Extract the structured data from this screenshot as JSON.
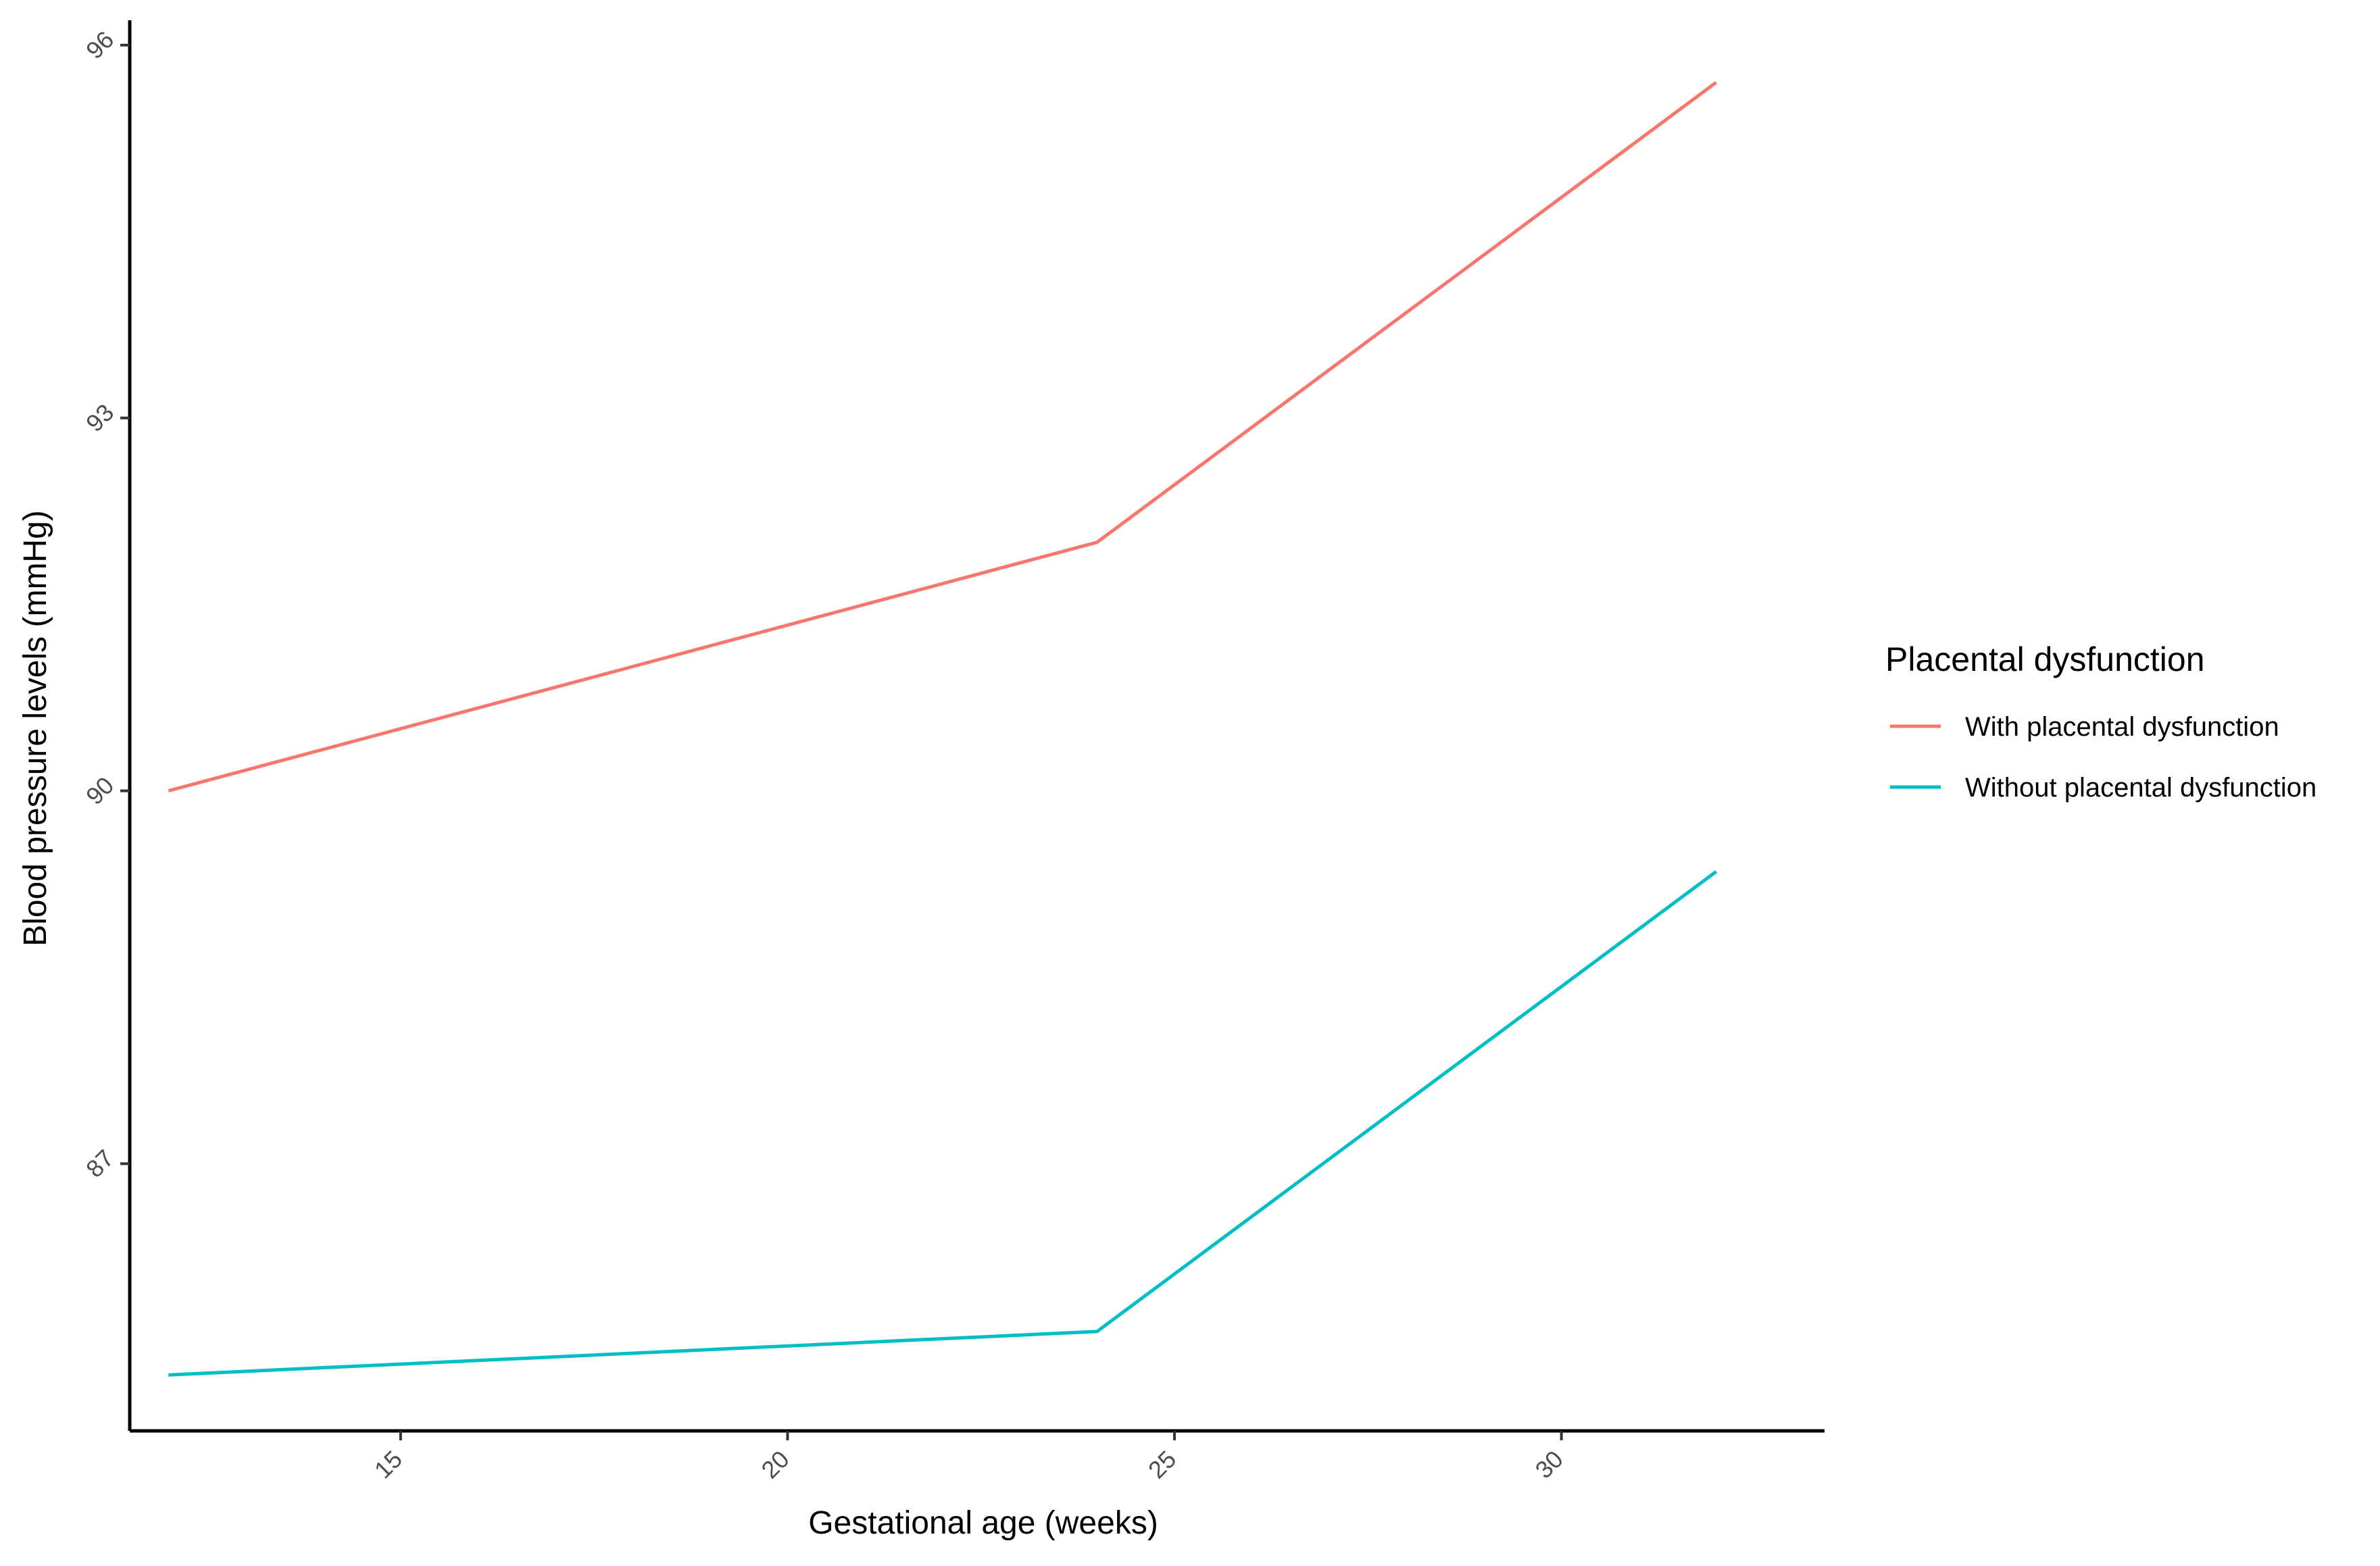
{
  "chart_data": {
    "type": "line",
    "xlabel": "Gestational age (weeks)",
    "ylabel": "Blood pressure levels (mmHg)",
    "x_ticks": [
      15,
      20,
      25,
      30
    ],
    "y_ticks": [
      87,
      90,
      93,
      96
    ],
    "xlim": [
      11.5,
      33.4
    ],
    "ylim": [
      84.85,
      96.2
    ],
    "grid": false,
    "legend": {
      "title": "Placental dysfunction",
      "placement": "right"
    },
    "series": [
      {
        "name": "With placental dysfunction",
        "color": "#F8766D",
        "x": [
          12,
          24,
          32
        ],
        "y": [
          90.0,
          92.0,
          95.7
        ]
      },
      {
        "name": "Without placental dysfunction",
        "color": "#00BFC4",
        "x": [
          12,
          24,
          32
        ],
        "y": [
          85.3,
          85.65,
          89.35
        ]
      }
    ]
  }
}
